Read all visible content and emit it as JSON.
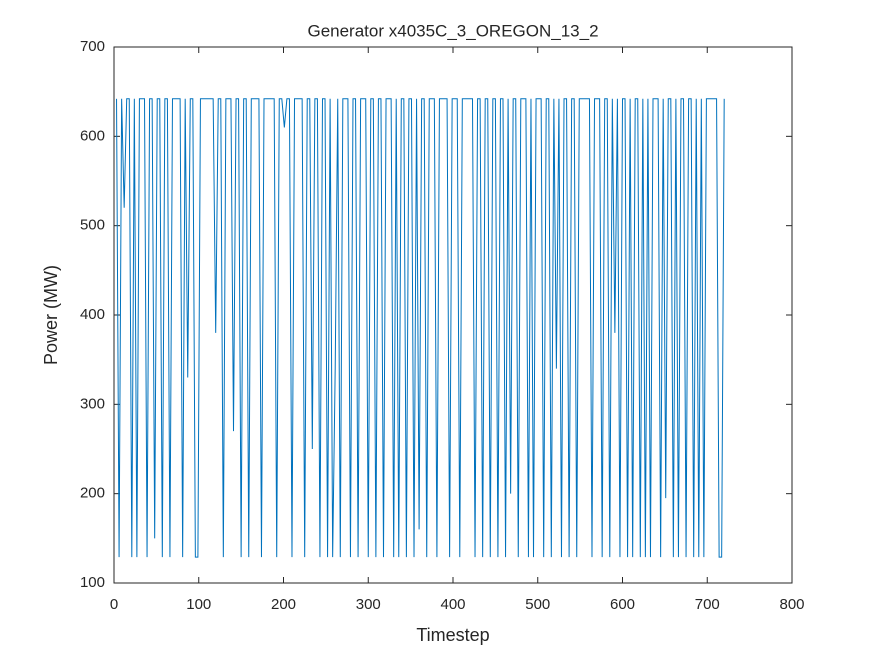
{
  "chart_data": {
    "type": "line",
    "title": "Generator x4035C_3_OREGON_13_2",
    "xlabel": "Timestep",
    "ylabel": "Power (MW)",
    "x": [
      3,
      6,
      9,
      12,
      15,
      18,
      21,
      24,
      27,
      30,
      33,
      36,
      39,
      42,
      45,
      48,
      51,
      54,
      57,
      60,
      63,
      66,
      69,
      72,
      75,
      78,
      81,
      84,
      87,
      90,
      93,
      96,
      99,
      102,
      105,
      108,
      111,
      114,
      117,
      120,
      123,
      126,
      129,
      132,
      135,
      138,
      141,
      144,
      147,
      150,
      153,
      156,
      159,
      162,
      165,
      168,
      171,
      174,
      177,
      180,
      183,
      186,
      189,
      192,
      195,
      198,
      201,
      204,
      207,
      210,
      213,
      216,
      219,
      222,
      225,
      228,
      231,
      234,
      237,
      240,
      243,
      246,
      249,
      252,
      255,
      258,
      261,
      264,
      267,
      270,
      273,
      276,
      279,
      282,
      285,
      288,
      291,
      294,
      297,
      300,
      303,
      306,
      309,
      312,
      315,
      318,
      321,
      324,
      327,
      330,
      333,
      336,
      339,
      342,
      345,
      348,
      351,
      354,
      357,
      360,
      363,
      366,
      369,
      372,
      375,
      378,
      381,
      384,
      387,
      390,
      393,
      396,
      399,
      402,
      405,
      408,
      411,
      414,
      417,
      420,
      423,
      426,
      429,
      432,
      435,
      438,
      441,
      444,
      447,
      450,
      453,
      456,
      459,
      462,
      465,
      468,
      471,
      474,
      477,
      480,
      483,
      486,
      489,
      492,
      495,
      498,
      501,
      504,
      507,
      510,
      513,
      516,
      519,
      522,
      525,
      528,
      531,
      534,
      537,
      540,
      543,
      546,
      549,
      552,
      555,
      558,
      561,
      564,
      567,
      570,
      573,
      576,
      579,
      582,
      585,
      588,
      591,
      594,
      597,
      600,
      603,
      606,
      609,
      612,
      615,
      618,
      621,
      624,
      627,
      630,
      633,
      636,
      639,
      642,
      645,
      648,
      651,
      654,
      657,
      660,
      663,
      666,
      669,
      672,
      675,
      678,
      681,
      684,
      687,
      690,
      693,
      696,
      699,
      702,
      705,
      708,
      711,
      714,
      717,
      720
    ],
    "series": [
      {
        "color": "#0072bd",
        "values": [
          642,
          129,
          642,
          520,
          642,
          642,
          129,
          642,
          129,
          642,
          642,
          642,
          129,
          642,
          642,
          150,
          642,
          642,
          129,
          642,
          642,
          129,
          642,
          642,
          642,
          642,
          129,
          642,
          330,
          642,
          642,
          129,
          129,
          642,
          642,
          642,
          642,
          642,
          642,
          380,
          642,
          642,
          129,
          642,
          642,
          642,
          270,
          642,
          642,
          129,
          642,
          642,
          129,
          642,
          642,
          642,
          642,
          129,
          642,
          642,
          642,
          642,
          642,
          129,
          642,
          642,
          610,
          642,
          642,
          129,
          642,
          642,
          642,
          642,
          129,
          642,
          642,
          250,
          642,
          642,
          129,
          642,
          642,
          129,
          642,
          129,
          340,
          642,
          129,
          642,
          642,
          642,
          129,
          642,
          642,
          129,
          642,
          642,
          642,
          129,
          642,
          642,
          129,
          642,
          642,
          129,
          642,
          642,
          642,
          129,
          642,
          129,
          642,
          642,
          129,
          642,
          642,
          129,
          642,
          160,
          642,
          642,
          129,
          642,
          642,
          642,
          129,
          642,
          642,
          642,
          642,
          129,
          642,
          642,
          642,
          129,
          642,
          642,
          642,
          642,
          642,
          129,
          642,
          642,
          129,
          642,
          642,
          129,
          642,
          642,
          129,
          642,
          642,
          129,
          642,
          200,
          642,
          642,
          129,
          642,
          642,
          642,
          129,
          642,
          129,
          642,
          642,
          642,
          129,
          642,
          642,
          129,
          642,
          340,
          642,
          129,
          642,
          642,
          129,
          642,
          642,
          129,
          642,
          642,
          642,
          642,
          642,
          129,
          642,
          642,
          642,
          129,
          642,
          642,
          129,
          642,
          380,
          642,
          129,
          642,
          642,
          129,
          642,
          129,
          642,
          642,
          129,
          642,
          129,
          642,
          129,
          642,
          642,
          642,
          129,
          642,
          195,
          642,
          642,
          129,
          642,
          129,
          642,
          642,
          129,
          642,
          642,
          129,
          642,
          129,
          642,
          129,
          642,
          642,
          642,
          642,
          642,
          129,
          129,
          642
        ]
      }
    ],
    "xlim": [
      0,
      800
    ],
    "ylim": [
      100,
      700
    ],
    "xticks": [
      0,
      100,
      200,
      300,
      400,
      500,
      600,
      700,
      800
    ],
    "yticks": [
      100,
      200,
      300,
      400,
      500,
      600,
      700
    ]
  }
}
